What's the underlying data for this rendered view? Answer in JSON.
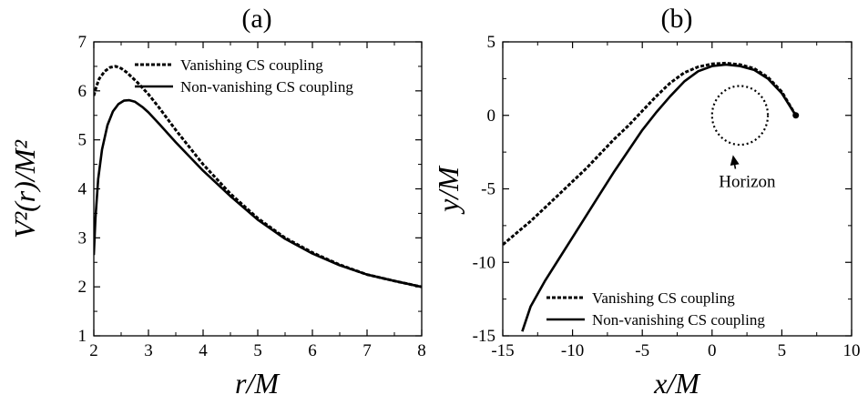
{
  "figure": {
    "colors": {
      "ink": "#000000",
      "background": "#ffffff"
    }
  },
  "chart_data": [
    {
      "type": "line",
      "panel_label": "(a)",
      "xlabel": "r/M",
      "ylabel": "V²(r)/M²",
      "xlim": [
        2,
        8
      ],
      "ylim": [
        1,
        7
      ],
      "xticks": [
        2,
        3,
        4,
        5,
        6,
        7,
        8
      ],
      "yticks": [
        1,
        2,
        3,
        4,
        5,
        6,
        7
      ],
      "legend_position": "top-right",
      "grid": false,
      "series": [
        {
          "name": "Vanishing CS coupling",
          "style": "dashed",
          "x": [
            2.0,
            2.05,
            2.1,
            2.2,
            2.3,
            2.4,
            2.5,
            2.6,
            2.8,
            3.0,
            3.2,
            3.5,
            4.0,
            4.5,
            5.0,
            5.5,
            6.0,
            6.5,
            7.0,
            7.5,
            8.0
          ],
          "y": [
            5.9,
            6.1,
            6.25,
            6.4,
            6.48,
            6.5,
            6.46,
            6.38,
            6.17,
            5.93,
            5.65,
            5.2,
            4.5,
            3.9,
            3.4,
            3.0,
            2.7,
            2.45,
            2.25,
            2.12,
            2.0
          ]
        },
        {
          "name": "Non-vanishing CS coupling",
          "style": "solid",
          "x": [
            2.0,
            2.03,
            2.08,
            2.15,
            2.25,
            2.35,
            2.45,
            2.55,
            2.65,
            2.75,
            2.9,
            3.0,
            3.2,
            3.5,
            4.0,
            4.5,
            5.0,
            5.5,
            6.0,
            6.5,
            7.0,
            7.5,
            8.0
          ],
          "y": [
            2.65,
            3.4,
            4.2,
            4.8,
            5.3,
            5.58,
            5.73,
            5.8,
            5.81,
            5.78,
            5.66,
            5.56,
            5.32,
            4.95,
            4.37,
            3.85,
            3.37,
            2.98,
            2.68,
            2.44,
            2.25,
            2.12,
            2.0
          ]
        }
      ]
    },
    {
      "type": "line",
      "panel_label": "(b)",
      "xlabel": "x/M",
      "ylabel": "y/M",
      "xlim": [
        -15,
        10
      ],
      "ylim": [
        -15,
        5
      ],
      "xticks": [
        -15,
        -10,
        -5,
        0,
        5,
        10
      ],
      "yticks": [
        -15,
        -10,
        -5,
        0,
        5
      ],
      "legend_position": "bottom-right",
      "grid": false,
      "annotation": {
        "text": "Horizon",
        "points_to": [
          1.5,
          -2.7
        ]
      },
      "horizon": {
        "center": [
          2.0,
          0.0
        ],
        "radius": 2.0
      },
      "end_marker": [
        6.0,
        0.0
      ],
      "series": [
        {
          "name": "Vanishing CS coupling",
          "style": "dashed",
          "x": [
            6.0,
            5.0,
            4.0,
            3.0,
            2.0,
            1.0,
            0.0,
            -1.0,
            -2.0,
            -3.0,
            -4.0,
            -5.0,
            -6.0,
            -7.0,
            -8.0,
            -9.0,
            -10.0,
            -11.0,
            -12.0,
            -13.0,
            -14.0,
            -15.0
          ],
          "y": [
            0.0,
            1.6,
            2.6,
            3.2,
            3.45,
            3.55,
            3.5,
            3.3,
            2.9,
            2.2,
            1.3,
            0.3,
            -0.7,
            -1.6,
            -2.6,
            -3.6,
            -4.5,
            -5.4,
            -6.3,
            -7.2,
            -8.0,
            -8.8
          ]
        },
        {
          "name": "Non-vanishing CS coupling",
          "style": "solid",
          "x": [
            6.0,
            5.0,
            4.0,
            3.0,
            2.0,
            1.0,
            0.0,
            -1.0,
            -2.0,
            -3.0,
            -4.0,
            -5.0,
            -6.0,
            -7.0,
            -8.0,
            -9.0,
            -10.0,
            -11.0,
            -12.0,
            -13.0,
            -13.6
          ],
          "y": [
            0.0,
            1.5,
            2.5,
            3.1,
            3.35,
            3.45,
            3.35,
            3.0,
            2.3,
            1.3,
            0.2,
            -1.0,
            -2.4,
            -3.8,
            -5.3,
            -6.8,
            -8.3,
            -9.8,
            -11.3,
            -13.0,
            -14.7
          ]
        }
      ]
    }
  ]
}
